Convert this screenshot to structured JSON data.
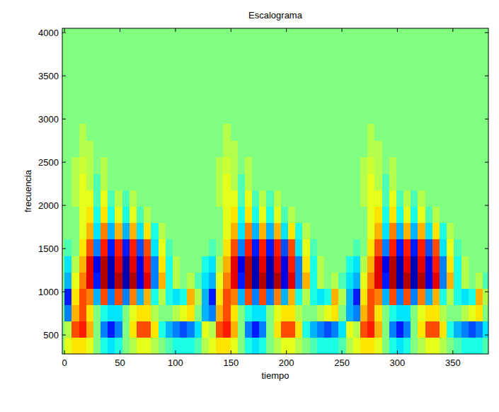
{
  "chart_data": {
    "type": "heatmap",
    "title": "Escalograma",
    "x_label": "tiempo",
    "y_label": "frecuencia",
    "xlim": [
      -2,
      382
    ],
    "ylim": [
      280,
      4050
    ],
    "xticks": [
      0,
      50,
      100,
      150,
      200,
      250,
      300,
      350
    ],
    "yticks": [
      500,
      1000,
      1500,
      2000,
      2500,
      3000,
      3500,
      4000
    ],
    "zlim": [
      -1,
      1
    ],
    "x": [
      3.25,
      9.75,
      16.25,
      22.75,
      29.25,
      35.75,
      42.25,
      48.75,
      55.25,
      61.75,
      68.25,
      74.75,
      81.25,
      87.75,
      94.25,
      100.75,
      107.25,
      113.75,
      120.25,
      126.75,
      133.25,
      139.75,
      146.25,
      152.75,
      159.25,
      165.75,
      172.25,
      178.75,
      185.25,
      191.75,
      198.25,
      204.75,
      211.25,
      217.75,
      224.25,
      230.75,
      237.25,
      243.75,
      250.25,
      256.75,
      263.25,
      269.75,
      276.25,
      282.75,
      289.25,
      295.75,
      302.25,
      308.75,
      315.25,
      321.75,
      328.25,
      334.75,
      341.25,
      347.75,
      354.25,
      360.75,
      367.25,
      373.75,
      380.25
    ],
    "y": [
      375,
      565,
      755,
      945,
      1135,
      1325,
      1515,
      1705,
      1895,
      2085,
      2275,
      2465,
      2655,
      2845
    ],
    "cells": [
      [
        0.2,
        0.3,
        0.3,
        0.2,
        0,
        -0.2,
        -0.3,
        -0.2,
        0,
        0.1,
        0.2,
        0.2,
        0.1,
        0,
        -0.1,
        -0.2,
        -0.2,
        -0.2,
        -0.1,
        0.1,
        0.2,
        0.3,
        0.3,
        0.2,
        0,
        -0.2,
        -0.3,
        -0.2,
        0,
        0.1,
        0.2,
        0.2,
        0.1,
        0,
        -0.1,
        -0.2,
        -0.2,
        -0.2,
        -0.1,
        0.1,
        0.2,
        0.3,
        0.3,
        0.2,
        0,
        -0.2,
        -0.3,
        -0.2,
        0,
        0.1,
        0.2,
        0.2,
        0.1,
        0,
        -0.1,
        -0.2,
        -0.2,
        -0.2,
        -0.1
      ],
      [
        0.1,
        0.6,
        0.7,
        0.4,
        0,
        -0.5,
        -0.7,
        -0.5,
        0,
        0.3,
        0.6,
        0.6,
        0.3,
        -0.2,
        -0.4,
        -0.5,
        -0.6,
        -0.5,
        -0.3,
        0.2,
        0.1,
        0.6,
        0.7,
        0.4,
        0,
        -0.5,
        -0.7,
        -0.5,
        0,
        0.3,
        0.6,
        0.6,
        0.3,
        -0.2,
        -0.4,
        -0.5,
        -0.6,
        -0.5,
        -0.3,
        0.2,
        0.1,
        0.6,
        0.7,
        0.4,
        0,
        -0.5,
        -0.7,
        -0.5,
        0,
        0.3,
        0.6,
        0.6,
        0.3,
        -0.2,
        -0.4,
        -0.5,
        -0.6,
        -0.5,
        -0.3
      ],
      [
        -0.5,
        0.4,
        0.6,
        0.3,
        0,
        -0.2,
        -0.3,
        -0.3,
        0,
        0.2,
        0.3,
        0.3,
        0.1,
        0,
        0,
        0.1,
        0.2,
        0.3,
        0,
        -0.4,
        -0.5,
        0.4,
        0.6,
        0.3,
        0,
        -0.2,
        -0.3,
        -0.3,
        0,
        0.2,
        0.3,
        0.3,
        0.1,
        0,
        0,
        0.1,
        0.2,
        0.3,
        0,
        -0.4,
        -0.5,
        0.4,
        0.6,
        0.3,
        0,
        -0.2,
        -0.3,
        -0.3,
        0,
        0.2,
        0.3,
        0.3,
        0.1,
        0,
        0,
        0.1,
        0.2,
        0.3,
        0
      ],
      [
        -0.7,
        0.3,
        0.6,
        0.5,
        -0.4,
        0.6,
        -0.5,
        0.6,
        -0.5,
        0.5,
        -0.4,
        0.4,
        -0.2,
        0.1,
        -0.2,
        -0.3,
        -0.2,
        0.4,
        0.1,
        -0.4,
        -0.7,
        0.3,
        0.6,
        0.5,
        -0.4,
        0.6,
        -0.5,
        0.6,
        -0.5,
        0.5,
        -0.4,
        0.4,
        -0.2,
        0.1,
        -0.2,
        -0.3,
        -0.2,
        0.4,
        0.1,
        -0.4,
        -0.7,
        0.3,
        0.6,
        0.5,
        -0.4,
        0.6,
        -0.5,
        0.6,
        -0.5,
        0.5,
        -0.4,
        0.4,
        -0.2,
        0.1,
        -0.2,
        -0.3,
        -0.2,
        0.4,
        0.1
      ],
      [
        -0.4,
        0.2,
        0.5,
        0.8,
        -0.7,
        0.9,
        -0.9,
        0.9,
        -0.9,
        0.9,
        -0.8,
        0.8,
        -0.5,
        0.4,
        -0.2,
        0.1,
        0,
        0.1,
        -0.1,
        -0.3,
        -0.4,
        0.2,
        0.5,
        0.8,
        -0.7,
        0.9,
        -0.9,
        0.9,
        -0.9,
        0.9,
        -0.8,
        0.8,
        -0.5,
        0.4,
        -0.2,
        0.1,
        0,
        0.1,
        -0.1,
        -0.3,
        -0.4,
        0.2,
        0.5,
        0.8,
        -0.7,
        0.9,
        -0.9,
        0.9,
        -0.9,
        0.9,
        -0.8,
        0.8,
        -0.5,
        0.4,
        -0.2,
        0.1,
        0,
        0.1,
        -0.1
      ],
      [
        -0.3,
        0.1,
        0.4,
        0.8,
        -0.8,
        0.9,
        -0.9,
        0.8,
        -0.9,
        0.8,
        -0.8,
        0.7,
        -0.5,
        0.3,
        -0.2,
        0.1,
        0,
        0,
        0,
        -0.2,
        -0.3,
        0.1,
        0.4,
        0.8,
        -0.8,
        0.9,
        -0.9,
        0.8,
        -0.9,
        0.8,
        -0.8,
        0.7,
        -0.5,
        0.3,
        -0.2,
        0.1,
        0,
        0,
        0,
        -0.2,
        -0.3,
        0.1,
        0.4,
        0.8,
        -0.8,
        0.9,
        -0.9,
        0.8,
        -0.9,
        0.8,
        -0.8,
        0.7,
        -0.5,
        0.3,
        -0.2,
        0.1,
        0,
        0,
        0
      ],
      [
        -0.1,
        0,
        0.3,
        0.6,
        -0.5,
        0.7,
        -0.7,
        0.7,
        -0.7,
        0.7,
        -0.6,
        0.6,
        -0.3,
        0.2,
        -0.1,
        0,
        0,
        0,
        0,
        0,
        -0.1,
        0,
        0.3,
        0.6,
        -0.5,
        0.7,
        -0.7,
        0.7,
        -0.7,
        0.7,
        -0.6,
        0.6,
        -0.3,
        0.2,
        -0.1,
        0,
        0,
        0,
        0,
        0,
        -0.1,
        0,
        0.3,
        0.6,
        -0.5,
        0.7,
        -0.7,
        0.7,
        -0.7,
        0.7,
        -0.6,
        0.6,
        -0.3,
        0.2,
        -0.1,
        0,
        0,
        0,
        0
      ],
      [
        0,
        0,
        0.2,
        0.4,
        -0.3,
        0.5,
        -0.4,
        0.4,
        -0.4,
        0.4,
        -0.3,
        0.3,
        -0.2,
        0.1,
        0,
        0,
        0,
        0,
        0,
        0,
        0,
        0,
        0.2,
        0.4,
        -0.3,
        0.5,
        -0.4,
        0.4,
        -0.4,
        0.4,
        -0.3,
        0.3,
        -0.2,
        0.1,
        0,
        0,
        0,
        0,
        0,
        0,
        0,
        0,
        0.2,
        0.4,
        -0.3,
        0.5,
        -0.4,
        0.4,
        -0.4,
        0.4,
        -0.3,
        0.3,
        -0.2,
        0.1,
        0,
        0,
        0,
        0,
        0
      ],
      [
        0,
        0,
        0.2,
        0.3,
        -0.2,
        0.3,
        -0.2,
        0.2,
        -0.2,
        0.2,
        -0.1,
        0.1,
        0,
        0,
        0,
        0,
        0,
        0,
        0,
        0,
        0,
        0,
        0.2,
        0.3,
        -0.2,
        0.3,
        -0.2,
        0.2,
        -0.2,
        0.2,
        -0.1,
        0.1,
        0,
        0,
        0,
        0,
        0,
        0,
        0,
        0,
        0,
        0,
        0.2,
        0.3,
        -0.2,
        0.3,
        -0.2,
        0.2,
        -0.2,
        0.2,
        -0.1,
        0.1,
        0,
        0,
        0,
        0,
        0,
        0,
        0
      ],
      [
        0,
        0.1,
        0.2,
        0.2,
        -0.1,
        0.2,
        -0.1,
        0.1,
        -0.1,
        0.1,
        0,
        0,
        0,
        0,
        0,
        0,
        0,
        0,
        0,
        0,
        0,
        0.1,
        0.2,
        0.2,
        -0.1,
        0.2,
        -0.1,
        0.1,
        -0.1,
        0.1,
        0,
        0,
        0,
        0,
        0,
        0,
        0,
        0,
        0,
        0,
        0,
        0.1,
        0.2,
        0.2,
        -0.1,
        0.2,
        -0.1,
        0.1,
        -0.1,
        0.1,
        0,
        0,
        0,
        0,
        0,
        0,
        0,
        0,
        0
      ],
      [
        0,
        0.1,
        0.2,
        0.1,
        -0.1,
        0.1,
        0,
        0,
        0,
        0,
        0,
        0,
        0,
        0,
        0,
        0,
        0,
        0,
        0,
        0,
        0,
        0.1,
        0.2,
        0.1,
        -0.1,
        0.1,
        0,
        0,
        0,
        0,
        0,
        0,
        0,
        0,
        0,
        0,
        0,
        0,
        0,
        0,
        0,
        0.1,
        0.2,
        0.1,
        -0.1,
        0.1,
        0,
        0,
        0,
        0,
        0,
        0,
        0,
        0,
        0,
        0,
        0,
        0,
        0
      ],
      [
        0,
        0.1,
        0.15,
        0.1,
        0,
        0.1,
        0,
        0,
        0,
        0,
        0,
        0,
        0,
        0,
        0,
        0,
        0,
        0,
        0,
        0,
        0,
        0.1,
        0.15,
        0.1,
        0,
        0.1,
        0,
        0,
        0,
        0,
        0,
        0,
        0,
        0,
        0,
        0,
        0,
        0,
        0,
        0,
        0,
        0.1,
        0.15,
        0.1,
        0,
        0.1,
        0,
        0,
        0,
        0,
        0,
        0,
        0,
        0,
        0,
        0,
        0,
        0,
        0
      ],
      [
        0,
        0,
        0.1,
        0.1,
        0,
        0,
        0,
        0,
        0,
        0,
        0,
        0,
        0,
        0,
        0,
        0,
        0,
        0,
        0,
        0,
        0,
        0,
        0.1,
        0.1,
        0,
        0,
        0,
        0,
        0,
        0,
        0,
        0,
        0,
        0,
        0,
        0,
        0,
        0,
        0,
        0,
        0,
        0,
        0.1,
        0.1,
        0,
        0,
        0,
        0,
        0,
        0,
        0,
        0,
        0,
        0,
        0,
        0,
        0,
        0,
        0
      ],
      [
        0,
        0,
        0.1,
        0,
        0,
        0,
        0,
        0,
        0,
        0,
        0,
        0,
        0,
        0,
        0,
        0,
        0,
        0,
        0,
        0,
        0,
        0,
        0.1,
        0,
        0,
        0,
        0,
        0,
        0,
        0,
        0,
        0,
        0,
        0,
        0,
        0,
        0,
        0,
        0,
        0,
        0,
        0,
        0.1,
        0,
        0,
        0,
        0,
        0,
        0,
        0,
        0,
        0,
        0,
        0,
        0,
        0,
        0,
        0,
        0
      ]
    ]
  }
}
